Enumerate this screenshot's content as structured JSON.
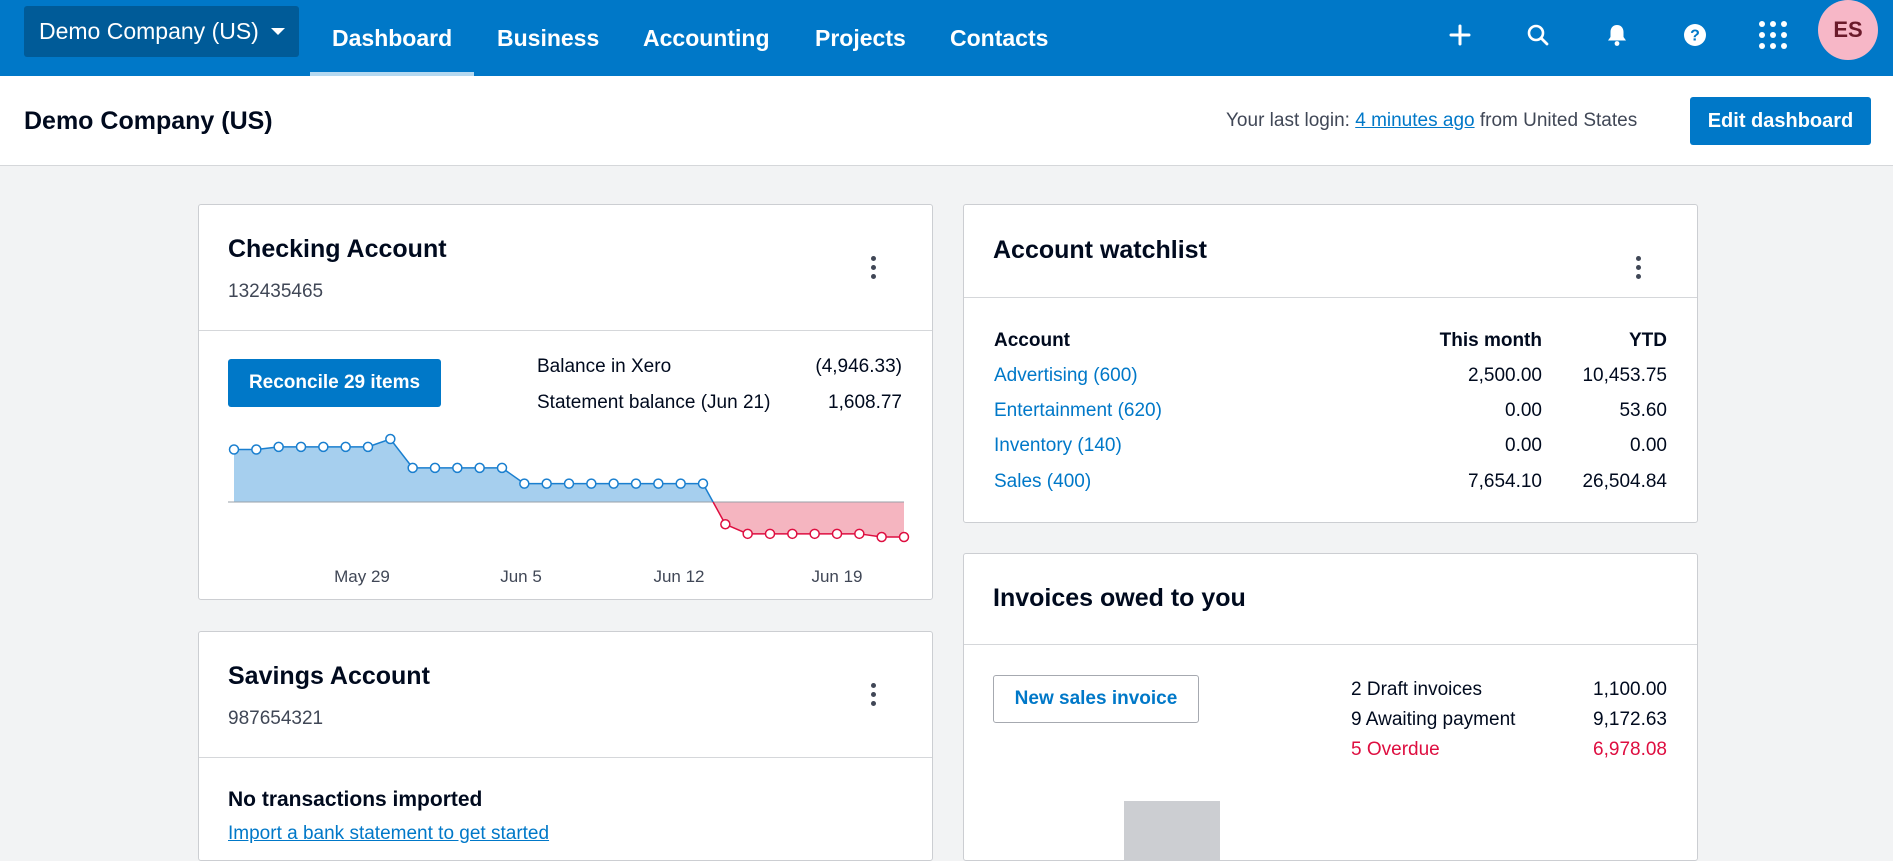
{
  "nav": {
    "org_name": "Demo Company (US)",
    "tabs": [
      "Dashboard",
      "Business",
      "Accounting",
      "Projects",
      "Contacts"
    ],
    "avatar_initials": "ES",
    "icons": [
      "plus-icon",
      "search-icon",
      "bell-icon",
      "help-icon",
      "apps-grid-icon"
    ]
  },
  "header": {
    "title": "Demo Company (US)",
    "login_prefix": "Your last login: ",
    "login_link": "4 minutes ago",
    "login_suffix": " from United States",
    "edit_button": "Edit dashboard"
  },
  "checking": {
    "title": "Checking Account",
    "number": "132435465",
    "reconcile_button": "Reconcile 29 items",
    "balance_label": "Balance in Xero",
    "balance_value": "(4,946.33)",
    "statement_label": "Statement balance (Jun 21)",
    "statement_value": "1,608.77",
    "chart_data": {
      "type": "area",
      "title": "",
      "x_tick_labels": [
        "May 29",
        "Jun 5",
        "Jun 12",
        "Jun 19"
      ],
      "positive_color": "#a6cfee",
      "negative_color": "#f5b5c0",
      "values": [
        1.0,
        1.0,
        1.05,
        1.05,
        1.05,
        1.05,
        1.05,
        1.2,
        0.65,
        0.65,
        0.65,
        0.65,
        0.65,
        0.35,
        0.35,
        0.35,
        0.35,
        0.35,
        0.35,
        0.35,
        0.35,
        0.35,
        -0.35,
        -0.5,
        -0.5,
        -0.5,
        -0.5,
        -0.5,
        -0.5,
        -0.55,
        -0.55
      ],
      "ylim": [
        -0.55,
        1.2
      ]
    }
  },
  "savings": {
    "title": "Savings Account",
    "number": "987654321",
    "empty_title": "No transactions imported",
    "empty_link": "Import a bank statement to get started"
  },
  "watchlist": {
    "title": "Account watchlist",
    "columns": [
      "Account",
      "This month",
      "YTD"
    ],
    "rows": [
      {
        "account": "Advertising (600)",
        "month": "2,500.00",
        "ytd": "10,453.75"
      },
      {
        "account": "Entertainment (620)",
        "month": "0.00",
        "ytd": "53.60"
      },
      {
        "account": "Inventory (140)",
        "month": "0.00",
        "ytd": "0.00"
      },
      {
        "account": "Sales (400)",
        "month": "7,654.10",
        "ytd": "26,504.84"
      }
    ]
  },
  "invoices": {
    "title": "Invoices owed to you",
    "new_button": "New sales invoice",
    "rows": [
      {
        "label": "2 Draft invoices",
        "value": "1,100.00",
        "overdue": false
      },
      {
        "label": "9 Awaiting payment",
        "value": "9,172.63",
        "overdue": false
      },
      {
        "label": "5 Overdue",
        "value": "6,978.08",
        "overdue": true
      }
    ]
  }
}
